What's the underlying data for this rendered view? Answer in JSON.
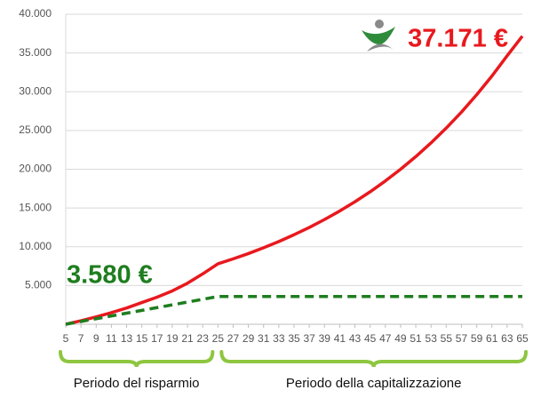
{
  "chart_data": {
    "type": "line",
    "x": [
      5,
      7,
      9,
      11,
      13,
      15,
      17,
      19,
      21,
      23,
      25,
      27,
      29,
      31,
      33,
      35,
      37,
      39,
      41,
      43,
      45,
      47,
      49,
      51,
      53,
      55,
      57,
      59,
      61,
      63,
      65
    ],
    "xlim": [
      5,
      65
    ],
    "xticks": [
      5,
      7,
      9,
      11,
      13,
      15,
      17,
      19,
      21,
      23,
      25,
      27,
      29,
      31,
      33,
      35,
      37,
      39,
      41,
      43,
      45,
      47,
      49,
      51,
      53,
      55,
      57,
      59,
      61,
      63,
      65
    ],
    "ylim": [
      0,
      40000
    ],
    "yticks": [
      {
        "value": 5000,
        "label": "5.000"
      },
      {
        "value": 10000,
        "label": "10.000"
      },
      {
        "value": 15000,
        "label": "15.000"
      },
      {
        "value": 20000,
        "label": "20.000"
      },
      {
        "value": 25000,
        "label": "25.000"
      },
      {
        "value": 30000,
        "label": "30.000"
      },
      {
        "value": 35000,
        "label": "35.000"
      },
      {
        "value": 40000,
        "label": "40.000"
      }
    ],
    "grid": true,
    "series": [
      {
        "color": "#e8191e",
        "dashed": false,
        "values": [
          0,
          450,
          950,
          1500,
          2100,
          2800,
          3500,
          4300,
          5300,
          6500,
          7800,
          8440,
          9120,
          9870,
          10670,
          11550,
          12490,
          13510,
          14610,
          15800,
          17090,
          18490,
          20000,
          21630,
          23400,
          25310,
          27370,
          29610,
          32020,
          34640,
          37171
        ]
      },
      {
        "color": "#1e7d1e",
        "dashed": true,
        "values": [
          0,
          358,
          716,
          1074,
          1432,
          1790,
          2148,
          2506,
          2864,
          3222,
          3580,
          3580,
          3580,
          3580,
          3580,
          3580,
          3580,
          3580,
          3580,
          3580,
          3580,
          3580,
          3580,
          3580,
          3580,
          3580,
          3580,
          3580,
          3580,
          3580,
          3580
        ]
      }
    ],
    "annotations": [
      {
        "text": "37.171 €",
        "color": "#e8191e"
      },
      {
        "text": "3.580 €",
        "color": "#1e7d1e"
      }
    ],
    "periods": [
      {
        "label": "Periodo del risparmio",
        "from": 5,
        "to": 25
      },
      {
        "label": "Periodo della capitalizzazione",
        "from": 25,
        "to": 65
      }
    ]
  }
}
